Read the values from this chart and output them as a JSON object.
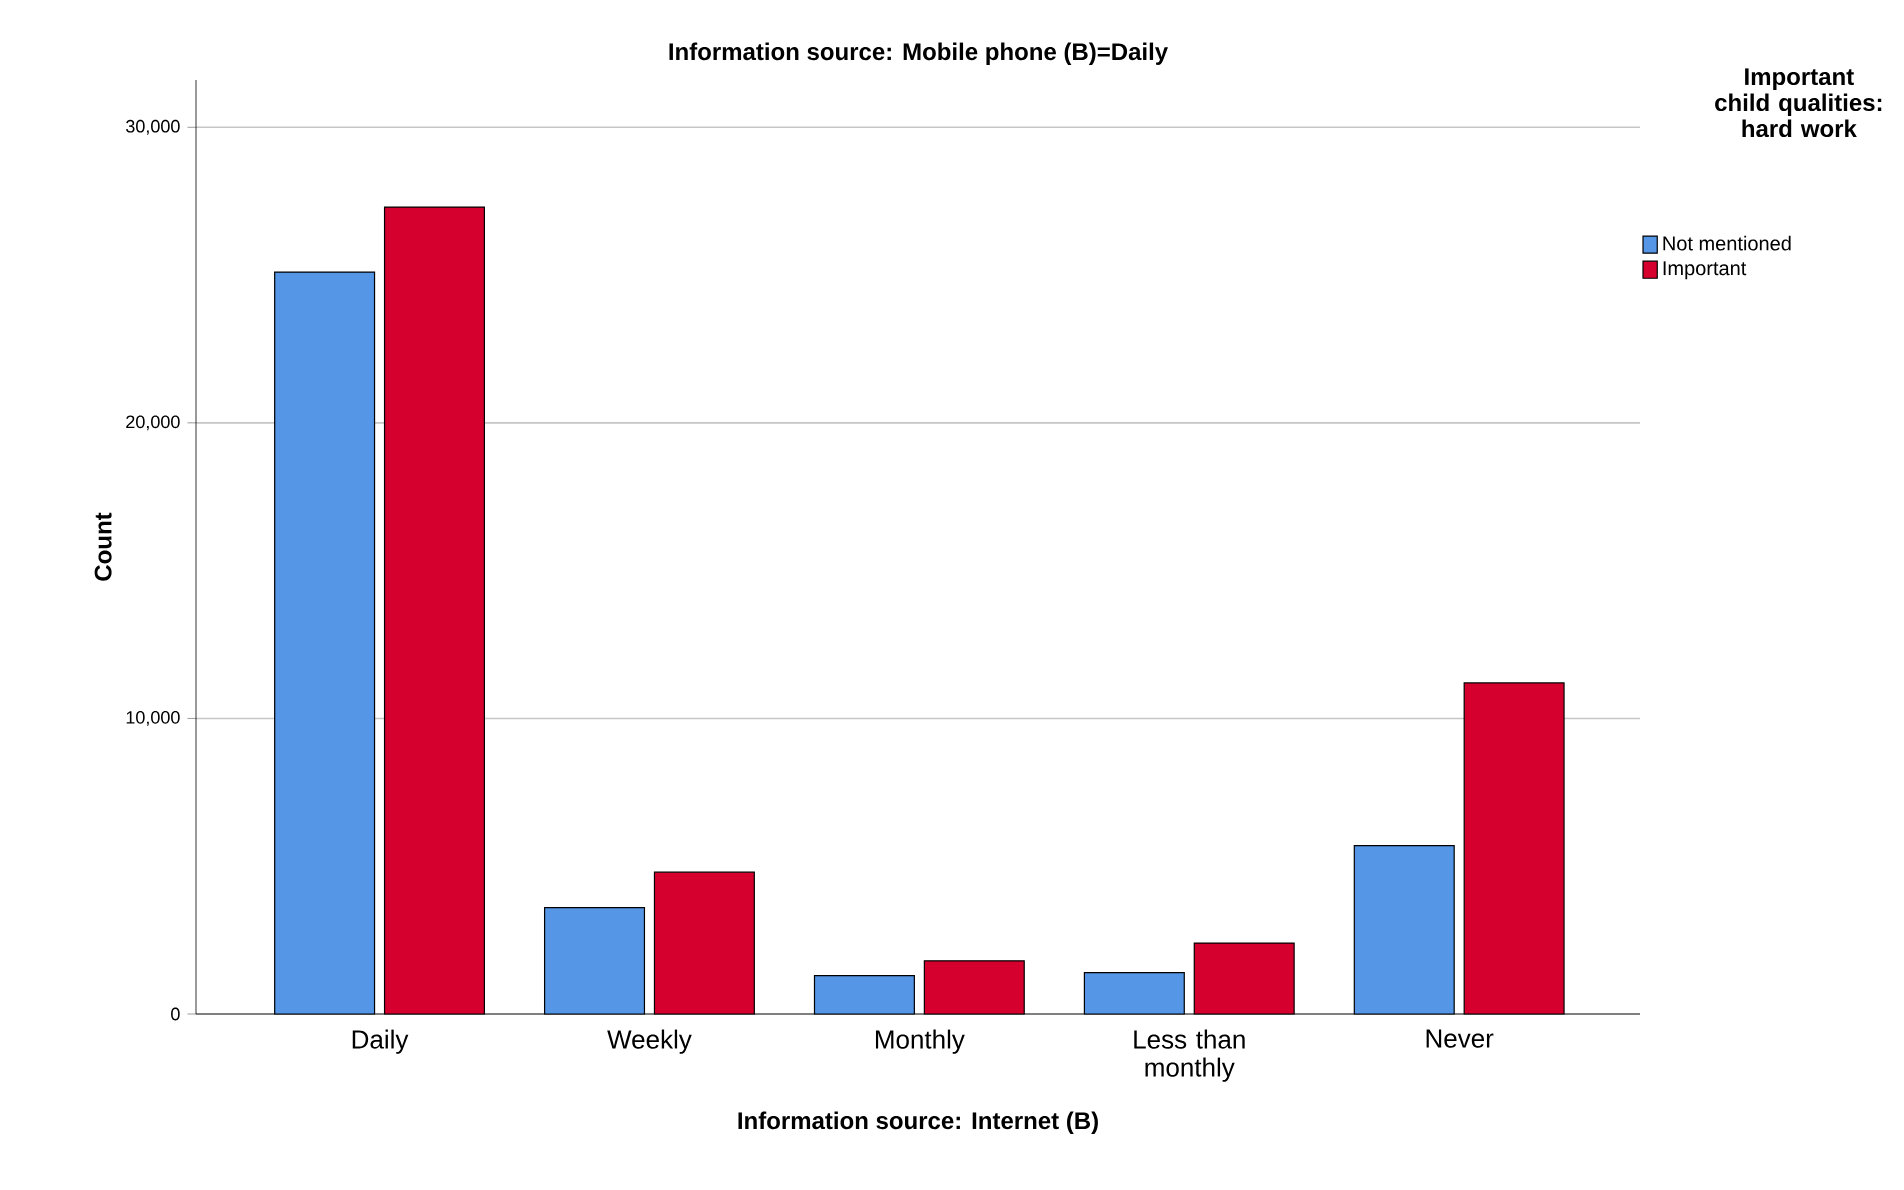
{
  "chart_data": {
    "type": "bar",
    "title": "Information source: Mobile phone (B)=Daily",
    "xlabel": "Information source: Internet (B)",
    "ylabel": "Count",
    "legend_title": "Important child qualities: hard work",
    "categories": [
      "Daily",
      "Weekly",
      "Monthly",
      "Less than monthly",
      "Never"
    ],
    "series": [
      {
        "name": "Not mentioned",
        "color": "#5596e6",
        "values": [
          25100,
          3600,
          1300,
          1400,
          5700
        ]
      },
      {
        "name": "Important",
        "color": "#d6002e",
        "values": [
          27300,
          4800,
          1800,
          2400,
          11200
        ]
      }
    ],
    "ylim": [
      0,
      31600
    ],
    "yticks": [
      {
        "value": 0,
        "label": "0"
      },
      {
        "value": 10000,
        "label": "10,000"
      },
      {
        "value": 20000,
        "label": "20,000"
      },
      {
        "value": 30000,
        "label": "30,000"
      }
    ],
    "grid": "y",
    "legend": "top right"
  }
}
